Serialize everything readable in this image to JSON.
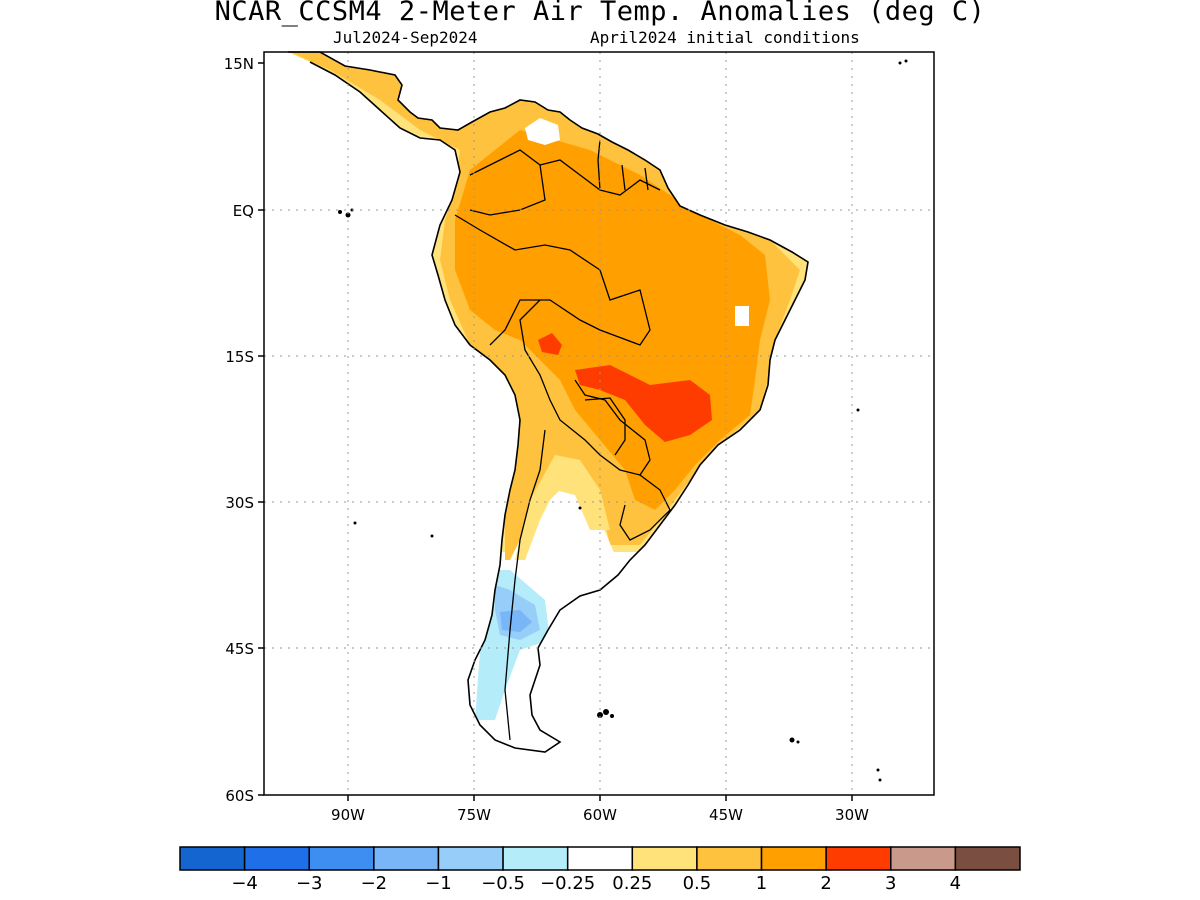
{
  "title": "NCAR_CCSM4 2-Meter Air Temp. Anomalies (deg C)",
  "subtitle_left": "Jul2024-Sep2024",
  "subtitle_right": "April2024 initial conditions",
  "lat_labels": [
    "15N",
    "EQ",
    "15S",
    "30S",
    "45S",
    "60S"
  ],
  "lon_labels": [
    "90W",
    "75W",
    "60W",
    "45W",
    "30W"
  ],
  "colorbar": {
    "colors": [
      "#1565d1",
      "#1e6fe8",
      "#3d8ef0",
      "#78b6f7",
      "#97cdf9",
      "#b4edf9",
      "#ffffff",
      "#ffe27a",
      "#ffc23e",
      "#ffa000",
      "#ff3c00",
      "#c99a8c",
      "#7a4e40"
    ],
    "labels": [
      "-4",
      "-3",
      "-2",
      "-1",
      "-0.5",
      "-0.25",
      "0.25",
      "0.5",
      "1",
      "2",
      "3",
      "4"
    ]
  },
  "colors": {
    "level_0_5": "#ffe27a",
    "level_1": "#ffc23e",
    "level_2": "#ffa000",
    "level_3": "#ff3c00",
    "level_neg_0_5": "#97cdf9",
    "level_neg_1": "#78b6f7",
    "level_neg_0_25": "#b4edf9"
  }
}
